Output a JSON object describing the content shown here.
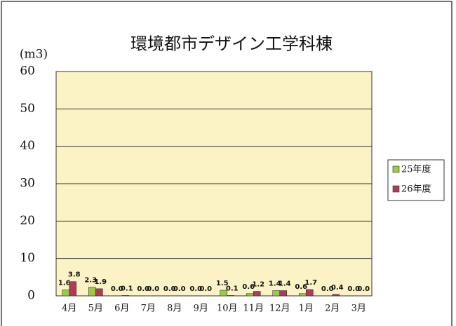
{
  "chart_data": {
    "type": "bar",
    "title": "環境都市デザイン工学科棟",
    "y_label": "(m3)",
    "categories": [
      "4月",
      "5月",
      "6月",
      "7月",
      "8月",
      "9月",
      "10月",
      "11月",
      "12月",
      "1月",
      "2月",
      "3月"
    ],
    "series": [
      {
        "name": "25年度",
        "color": "#99cc44",
        "values": [
          1.6,
          2.3,
          0,
          0,
          0,
          0,
          1.5,
          0.6,
          1.4,
          0.6,
          0,
          0
        ],
        "value_labels": [
          "1.6",
          "2.3",
          "0.0",
          "0.0",
          "0.0",
          "0.0",
          "1.5",
          "0.6",
          "1.4",
          "0.6",
          "0.0",
          "0.0"
        ]
      },
      {
        "name": "26年度",
        "color": "#b03a5a",
        "values": [
          3.8,
          1.9,
          0.1,
          0,
          0,
          0,
          0.1,
          1.2,
          1.4,
          1.7,
          0.4,
          0
        ],
        "value_labels": [
          "3.8",
          "1.9",
          "0.1",
          "0.0",
          "0.0",
          "0.0",
          "0.1",
          "1.2",
          "1.4",
          "1.7",
          "0.4",
          "0.0"
        ]
      }
    ],
    "ylim": [
      0,
      60
    ],
    "yticks": [
      0,
      10,
      20,
      30,
      40,
      50,
      60
    ],
    "grid": true,
    "legend": "right"
  }
}
